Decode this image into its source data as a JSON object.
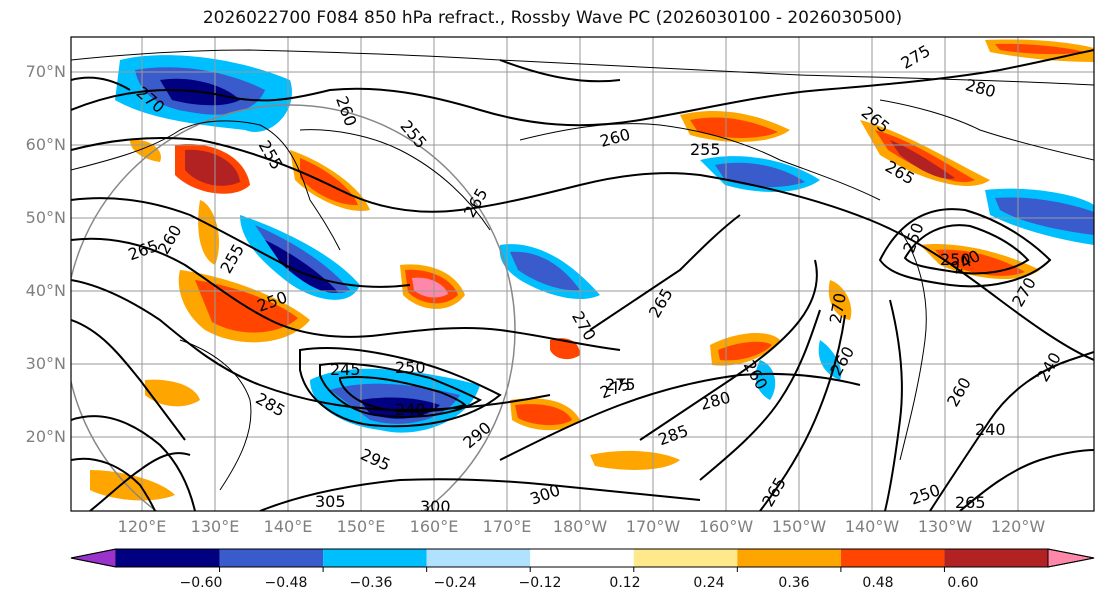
{
  "title": "2026022700 F084 850 hPa refract., Rossby Wave PC (2026030100 - 2026030500)",
  "lat_labels": [
    "70°N",
    "60°N",
    "50°N",
    "40°N",
    "30°N",
    "20°N"
  ],
  "lon_labels": [
    "120°E",
    "130°E",
    "140°E",
    "150°E",
    "160°E",
    "170°E",
    "180°W",
    "170°W",
    "160°W",
    "150°W",
    "140°W",
    "130°W",
    "120°W"
  ],
  "colorbar": {
    "ticks": [
      "−0.60",
      "−0.48",
      "−0.36",
      "−0.24",
      "−0.12",
      "0.12",
      "0.24",
      "0.36",
      "0.48",
      "0.60"
    ],
    "colors": [
      "#9933cc",
      "#000080",
      "#3a5bcc",
      "#00bfff",
      "#b0e2ff",
      "#ffffff",
      "#ffe98a",
      "#ffa500",
      "#ff4500",
      "#b22222",
      "#ff88aa"
    ]
  },
  "contour_labels": [
    "270",
    "260",
    "255",
    "260",
    "255",
    "265",
    "265",
    "260",
    "255",
    "250",
    "250",
    "275",
    "245",
    "250",
    "240",
    "285",
    "295",
    "290",
    "305",
    "300",
    "300",
    "275",
    "285",
    "280",
    "265",
    "270",
    "260",
    "270",
    "275",
    "280",
    "265",
    "265",
    "250",
    "240",
    "260",
    "240",
    "270",
    "240",
    "250",
    "265",
    "265",
    "260",
    "255"
  ],
  "legend_colors": {
    "strong_negative": "#000080",
    "strong_positive": "#b22222"
  }
}
